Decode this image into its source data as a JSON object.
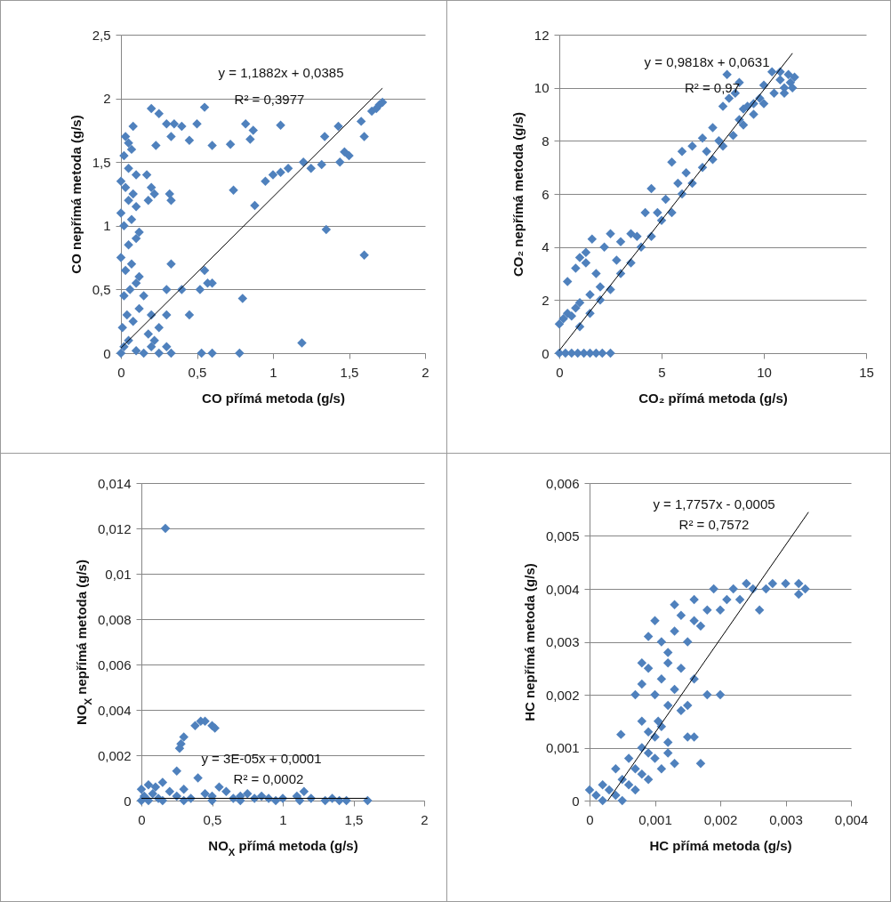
{
  "chart_data": [
    {
      "type": "scatter",
      "xlabel": "CO přímá metoda (g/s)",
      "ylabel": "CO nepřímá metoda (g/s)",
      "xlim": [
        0,
        2
      ],
      "xticks": [
        0,
        {
          "value": 0.5,
          "label": "0,5"
        },
        1,
        {
          "value": 1.5,
          "label": "1,5"
        },
        2
      ],
      "ylim": [
        0,
        2.5
      ],
      "yticks": [
        0,
        {
          "value": 0.5,
          "label": "0,5"
        },
        1,
        {
          "value": 1.5,
          "label": "1,5"
        },
        2,
        {
          "value": 2.5,
          "label": "2,5"
        }
      ],
      "grid": "y",
      "marker": "diamond",
      "series": [
        {
          "color": "#4f81bd",
          "x": [
            0,
            0.02,
            0.05,
            0.1,
            0.15,
            0.2,
            0.25,
            0.3,
            0.33,
            0.01,
            0.04,
            0.08,
            0.12,
            0.02,
            0.06,
            0.1,
            0.15,
            0.03,
            0.07,
            0.12,
            0,
            0.05,
            0.1,
            0.02,
            0.07,
            0.12,
            0,
            0.05,
            0.1,
            0.03,
            0.08,
            0,
            0.05,
            0.1,
            0.02,
            0.07,
            0.03,
            0.08,
            0.05,
            0.17,
            0.2,
            0.22,
            0.18,
            0.32,
            0.33,
            0.2,
            0.25,
            0.3,
            0.22,
            0.18,
            0.3,
            0.33,
            0.4,
            0.45,
            0.52,
            0.55,
            0.57,
            0.6,
            0.8,
            0.53,
            0.6,
            0.78,
            1.19,
            1.35,
            1.6,
            0.74,
            0.88,
            0.95,
            1,
            1.05,
            1.1,
            1.2,
            1.25,
            1.32,
            1.44,
            1.47,
            1.5,
            1.34,
            1.43,
            1.6,
            1.58,
            1.65,
            1.7,
            1.72,
            1.68,
            0.2,
            0.25,
            0.3,
            0.35,
            0.23,
            0.33,
            0.5,
            0.55,
            0.45,
            0.6,
            0.72,
            0.82,
            0.87,
            0.85,
            1.05,
            0.4
          ],
          "values": [
            0,
            0.05,
            0.1,
            0.02,
            0,
            0.05,
            0,
            0.05,
            0,
            0.2,
            0.3,
            0.25,
            0.35,
            0.45,
            0.5,
            0.55,
            0.45,
            0.65,
            0.7,
            0.6,
            0.75,
            0.85,
            0.9,
            1,
            1.05,
            0.95,
            1.1,
            1.2,
            1.15,
            1.3,
            1.25,
            1.35,
            1.45,
            1.4,
            1.55,
            1.6,
            1.7,
            1.78,
            1.65,
            1.4,
            1.3,
            1.25,
            1.2,
            1.25,
            1.2,
            0.3,
            0.2,
            0.3,
            0.1,
            0.15,
            0.5,
            0.7,
            0.5,
            0.3,
            0.5,
            0.65,
            0.55,
            0.55,
            0.43,
            0,
            0,
            0,
            0.08,
            0.97,
            0.77,
            1.28,
            1.16,
            1.35,
            1.4,
            1.42,
            1.45,
            1.5,
            1.45,
            1.48,
            1.5,
            1.58,
            1.55,
            1.7,
            1.78,
            1.7,
            1.82,
            1.9,
            1.95,
            1.97,
            1.92,
            1.92,
            1.88,
            1.8,
            1.8,
            1.63,
            1.7,
            1.8,
            1.93,
            1.67,
            1.63,
            1.64,
            1.8,
            1.75,
            1.68,
            1.79,
            1.78
          ]
        },
        {
          "type": "line",
          "marker": "none",
          "color": "#000000",
          "x": [
            0,
            1.72
          ],
          "values": [
            0.04,
            2.08
          ]
        }
      ],
      "annotations": [
        "y = 1,1882x + 0,0385",
        "R² = 0,3977"
      ]
    },
    {
      "type": "scatter",
      "xlabel": "CO₂ přímá metoda (g/s)",
      "ylabel": "CO₂ nepřímá metoda (g/s)",
      "xlim": [
        0,
        15
      ],
      "xticks": [
        0,
        5,
        10,
        15
      ],
      "ylim": [
        0,
        12
      ],
      "yticks": [
        0,
        2,
        4,
        6,
        8,
        10,
        12
      ],
      "grid": "y",
      "marker": "diamond",
      "series": [
        {
          "color": "#4f81bd",
          "x": [
            0,
            0.3,
            0.6,
            0.9,
            1.2,
            1.5,
            1.8,
            2.1,
            2.5,
            0,
            0.2,
            0.4,
            0.6,
            0.8,
            1,
            0.4,
            0.8,
            1,
            1.3,
            1.6,
            1.3,
            1.8,
            2.5,
            2.2,
            3,
            3.5,
            2,
            1.5,
            4.5,
            4.2,
            5.5,
            6,
            6.5,
            7,
            7.5,
            8,
            8.3,
            8.2,
            8.8,
            9,
            8.6,
            1,
            1.5,
            2,
            2.5,
            3,
            3.5,
            4,
            4.5,
            5,
            5.5,
            6,
            6.5,
            7,
            7.5,
            8,
            8.5,
            9,
            9.5,
            10,
            10.5,
            11,
            11.3,
            11.5,
            11.2,
            10.8,
            10.4,
            9.8,
            9.5,
            2.8,
            3.8,
            5.2,
            6.2,
            7.2,
            5.8,
            4.8,
            9.2,
            10,
            10.8,
            11.4,
            11,
            7.8,
            8.8
          ],
          "values": [
            0,
            0,
            0,
            0,
            0,
            0,
            0,
            0,
            0,
            1.1,
            1.3,
            1.5,
            1.4,
            1.7,
            1.9,
            2.7,
            3.2,
            3.6,
            3.8,
            4.3,
            3.4,
            3,
            4.5,
            4,
            4.2,
            4.5,
            2.5,
            2.2,
            6.2,
            5.3,
            7.2,
            7.6,
            7.8,
            8.1,
            8.5,
            9.3,
            9.6,
            10.5,
            10.2,
            9.2,
            9.8,
            1,
            1.5,
            2,
            2.4,
            3,
            3.4,
            4,
            4.4,
            5,
            5.3,
            6,
            6.4,
            7,
            7.3,
            7.8,
            8.2,
            8.6,
            9,
            9.4,
            9.8,
            10,
            10.2,
            10.4,
            10.5,
            10.3,
            10.6,
            9.6,
            9.4,
            3.5,
            4.4,
            5.8,
            6.8,
            7.6,
            6.4,
            5.3,
            9.3,
            10.1,
            10.6,
            10,
            9.8,
            8,
            8.8
          ]
        },
        {
          "type": "line",
          "marker": "none",
          "color": "#000000",
          "x": [
            0,
            11.4
          ],
          "values": [
            0.1,
            11.3
          ]
        }
      ],
      "annotations": [
        "y = 0,9818x + 0,0631",
        "R² = 0,97"
      ]
    },
    {
      "type": "scatter",
      "xlabel": "NO$_{X}$ přímá metoda (g/s)",
      "ylabel": "NO$_{X}$ nepřímá metoda (g/s)",
      "xlim": [
        0,
        2
      ],
      "xticks": [
        0,
        {
          "value": 0.5,
          "label": "0,5"
        },
        1,
        {
          "value": 1.5,
          "label": "1,5"
        },
        2
      ],
      "ylim": [
        0,
        0.014
      ],
      "yticks": [
        0,
        {
          "value": 0.002,
          "label": "0,002"
        },
        {
          "value": 0.004,
          "label": "0,004"
        },
        {
          "value": 0.006,
          "label": "0,006"
        },
        {
          "value": 0.008,
          "label": "0,008"
        },
        {
          "value": 0.01,
          "label": "0,01"
        },
        {
          "value": 0.012,
          "label": "0,012"
        },
        {
          "value": 0.014,
          "label": "0,014"
        }
      ],
      "grid": "y",
      "marker": "diamond",
      "series": [
        {
          "color": "#4f81bd",
          "x": [
            0.17,
            0.28,
            0.3,
            0.27,
            0.38,
            0.42,
            0.45,
            0.5,
            0.52,
            0.25,
            0.4,
            0.15,
            0,
            0.05,
            0.1,
            0.02,
            0.08,
            0.12,
            0.2,
            0.25,
            0.3,
            0.35,
            0.45,
            0.5,
            0.6,
            0.65,
            0.7,
            0.75,
            0.8,
            0.85,
            0.9,
            0.95,
            1,
            1.1,
            1.12,
            1.2,
            1.3,
            1.35,
            1.4,
            1.45,
            1.6,
            0,
            0.05,
            0.15,
            0.3,
            0.5,
            0.7,
            0.55,
            1.15
          ],
          "values": [
            0.012,
            0.0025,
            0.0028,
            0.0023,
            0.0033,
            0.0035,
            0.0035,
            0.0033,
            0.0032,
            0.0013,
            0.001,
            0.0008,
            0.0005,
            0.0007,
            0.0006,
            0.0002,
            0.0003,
            0.0001,
            0.0004,
            0.0002,
            0.0005,
            0.0001,
            0.0003,
            0.0002,
            0.0004,
            0.0001,
            0.0002,
            0.0003,
            0.0001,
            0.0002,
            0.0001,
            0,
            0.0001,
            0.0002,
            0,
            0.0001,
            0,
            0.0001,
            0,
            0,
            0,
            0,
            0,
            0,
            0,
            0,
            0,
            0.0006,
            0.0004
          ]
        },
        {
          "type": "line",
          "marker": "none",
          "color": "#000000",
          "x": [
            0,
            1.6
          ],
          "values": [
            0.0001,
            0.0001
          ]
        }
      ],
      "annotations": [
        "y = 3E-05x + 0,0001",
        "R² = 0,0002"
      ]
    },
    {
      "type": "scatter",
      "xlabel": "HC přímá metoda (g/s)",
      "ylabel": "HC nepřímá metoda (g/s)",
      "xlim": [
        0,
        0.004
      ],
      "xticks": [
        0,
        {
          "value": 0.001,
          "label": "0,001"
        },
        {
          "value": 0.002,
          "label": "0,002"
        },
        {
          "value": 0.003,
          "label": "0,003"
        },
        {
          "value": 0.004,
          "label": "0,004"
        }
      ],
      "ylim": [
        0,
        0.006
      ],
      "yticks": [
        0,
        {
          "value": 0.001,
          "label": "0,001"
        },
        {
          "value": 0.002,
          "label": "0,002"
        },
        {
          "value": 0.003,
          "label": "0,003"
        },
        {
          "value": 0.004,
          "label": "0,004"
        },
        {
          "value": 0.005,
          "label": "0,005"
        },
        {
          "value": 0.006,
          "label": "0,006"
        }
      ],
      "grid": "y",
      "marker": "diamond",
      "series": [
        {
          "color": "#4f81bd",
          "x": [
            0,
            0.0001,
            0.0002,
            0.0003,
            0.0002,
            0.0004,
            0.0005,
            0.0004,
            0.0005,
            0.0006,
            0.0007,
            0.0006,
            0.0007,
            0.0008,
            0.0009,
            0.0008,
            0.0009,
            0.001,
            0.0011,
            0.0012,
            0.0013,
            0.00048,
            0.0008,
            0.0009,
            0.001,
            0.0011,
            0.0012,
            0.0015,
            0.0016,
            0.0017,
            0.0007,
            0.0008,
            0.0009,
            0.0008,
            0.001,
            0.0011,
            0.0012,
            0.0013,
            0.0014,
            0.0015,
            0.0016,
            0.0018,
            0.002,
            0.0009,
            0.001,
            0.0011,
            0.0012,
            0.0013,
            0.0013,
            0.0014,
            0.0015,
            0.0016,
            0.0016,
            0.0017,
            0.0018,
            0.0019,
            0.002,
            0.0021,
            0.0022,
            0.0023,
            0.0024,
            0.0025,
            0.0026,
            0.0027,
            0.0028,
            0.003,
            0.0032,
            0.0032,
            0.0033,
            0.0014,
            0.0012,
            0.00105
          ],
          "values": [
            0.0002,
            0.0001,
            0,
            0.0002,
            0.0003,
            0.0001,
            0,
            0.0006,
            0.0004,
            0.0003,
            0.0002,
            0.0008,
            0.0006,
            0.0005,
            0.0004,
            0.001,
            0.0009,
            0.0008,
            0.0006,
            0.0009,
            0.0007,
            0.00125,
            0.0015,
            0.0013,
            0.0012,
            0.0014,
            0.0011,
            0.0012,
            0.0012,
            0.0007,
            0.002,
            0.0022,
            0.0025,
            0.0026,
            0.002,
            0.0023,
            0.0018,
            0.0021,
            0.0017,
            0.0018,
            0.0023,
            0.002,
            0.002,
            0.0031,
            0.0034,
            0.003,
            0.0028,
            0.0032,
            0.0037,
            0.0035,
            0.003,
            0.0034,
            0.0038,
            0.0033,
            0.0036,
            0.004,
            0.0036,
            0.0038,
            0.004,
            0.0038,
            0.0041,
            0.004,
            0.0036,
            0.004,
            0.0041,
            0.0041,
            0.0041,
            0.0039,
            0.004,
            0.0025,
            0.0026,
            0.0015
          ]
        },
        {
          "type": "line",
          "marker": "none",
          "color": "#000000",
          "x": [
            0.00028,
            0.00335
          ],
          "values": [
            0,
            0.00545
          ]
        }
      ],
      "annotations": [
        "y = 1,7757x - 0,0005",
        "R² = 0,7572"
      ]
    }
  ]
}
